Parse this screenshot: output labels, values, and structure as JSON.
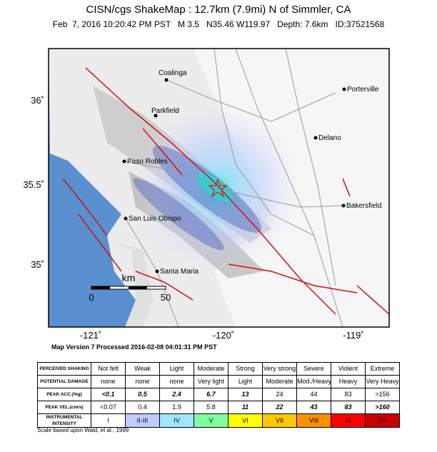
{
  "header": {
    "title": "CISN/cgs ShakeMap : 12.7km (7.9mi) N of Simmler, CA",
    "subtitle": "Feb  7, 2016 10:20:42 PM PST   M 3.5   N35.46 W119.97   Depth: 7.6km   ID:37521568"
  },
  "map": {
    "cities": [
      "Coalinga",
      "Parkfield",
      "Porterville",
      "Delano",
      "Paso Robles",
      "Bakersfield",
      "San Luis Obispo",
      "Santa Maria"
    ],
    "lat_labels": [
      "36˚",
      "35.5˚",
      "35˚"
    ],
    "lon_labels": [
      "-121˚",
      "-120˚",
      "-119˚"
    ],
    "scale": {
      "unit": "km",
      "start": "0",
      "end": "50"
    }
  },
  "version": "Map Version 7 Processed 2016-02-08 04:01:31 PM PST",
  "legend": {
    "rows": [
      {
        "label": "PERCEIVED SHAKING",
        "cells": [
          "Not felt",
          "Weak",
          "Light",
          "Moderate",
          "Strong",
          "Very strong",
          "Severe",
          "Violent",
          "Extreme"
        ]
      },
      {
        "label": "POTENTIAL DAMAGE",
        "cells": [
          "none",
          "none",
          "none",
          "Very light",
          "Light",
          "Moderate",
          "Mod./Heavy",
          "Heavy",
          "Very Heavy"
        ]
      },
      {
        "label": "PEAK ACC.(%g)",
        "cells": [
          "<0.1",
          "0.5",
          "2.4",
          "6.7",
          "13",
          "24",
          "44",
          "83",
          ">156"
        ]
      },
      {
        "label": "PEAK VEL.(cm/s)",
        "cells": [
          "<0.07",
          "0.4",
          "1.9",
          "5.8",
          "11",
          "22",
          "43",
          "83",
          ">160"
        ]
      },
      {
        "label": "INSTRUMENTAL INTENSITY",
        "cells": [
          "I",
          "II-III",
          "IV",
          "V",
          "VI",
          "VII",
          "VIII",
          "IX",
          "X+"
        ]
      }
    ],
    "colors": [
      "#ffffff",
      "#bfccff",
      "#a0e6ff",
      "#80ffa0",
      "#ffff00",
      "#ffc800",
      "#ff9100",
      "#ff0000",
      "#c80000"
    ]
  },
  "footnote": "Scale based upon Wald, et al.; 1999"
}
